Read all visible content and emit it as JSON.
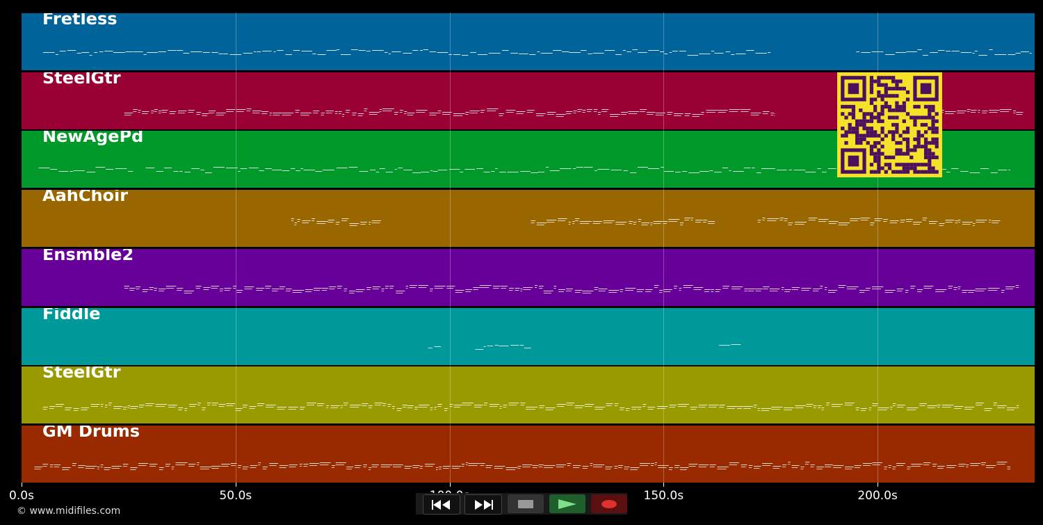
{
  "tracks": [
    {
      "name": "Fretless",
      "color": "#00649a"
    },
    {
      "name": "SteelGtr",
      "color": "#990033"
    },
    {
      "name": "NewAgePd",
      "color": "#00992a"
    },
    {
      "name": "AahChoir",
      "color": "#996600"
    },
    {
      "name": "Ensmble2",
      "color": "#660099"
    },
    {
      "name": "Fiddle",
      "color": "#009999"
    },
    {
      "name": "SteelGtr",
      "color": "#999900"
    },
    {
      "name": "GM Drums",
      "color": "#992a00"
    }
  ],
  "time_axis": {
    "ticks": [
      {
        "value": 0,
        "label": "0.0s"
      },
      {
        "value": 50,
        "label": "50.0s"
      },
      {
        "value": 100,
        "label": "100.0s"
      },
      {
        "value": 150,
        "label": "150.0s"
      },
      {
        "value": 200,
        "label": "200.0s"
      }
    ],
    "max_seconds": 236.7
  },
  "note_ranges": [
    [
      [
        5,
        175
      ],
      [
        195,
        236
      ]
    ],
    [
      [
        24,
        176
      ],
      [
        214,
        234
      ]
    ],
    [
      [
        4,
        26
      ],
      [
        29,
        231
      ]
    ],
    [
      [
        63,
        84
      ],
      [
        119,
        162
      ],
      [
        172,
        229
      ]
    ],
    [
      [
        24,
        233
      ]
    ],
    [
      [
        95,
        98
      ],
      [
        106,
        119
      ],
      [
        163,
        168
      ]
    ],
    [
      [
        5,
        233
      ]
    ],
    [
      [
        3,
        231
      ]
    ]
  ],
  "controls": {
    "rewind": "rewind-icon",
    "fast_forward": "fast-forward-icon",
    "stop": "stop-icon",
    "play": "play-icon",
    "record": "record-icon"
  },
  "copyright": "© www.midifiles.com"
}
